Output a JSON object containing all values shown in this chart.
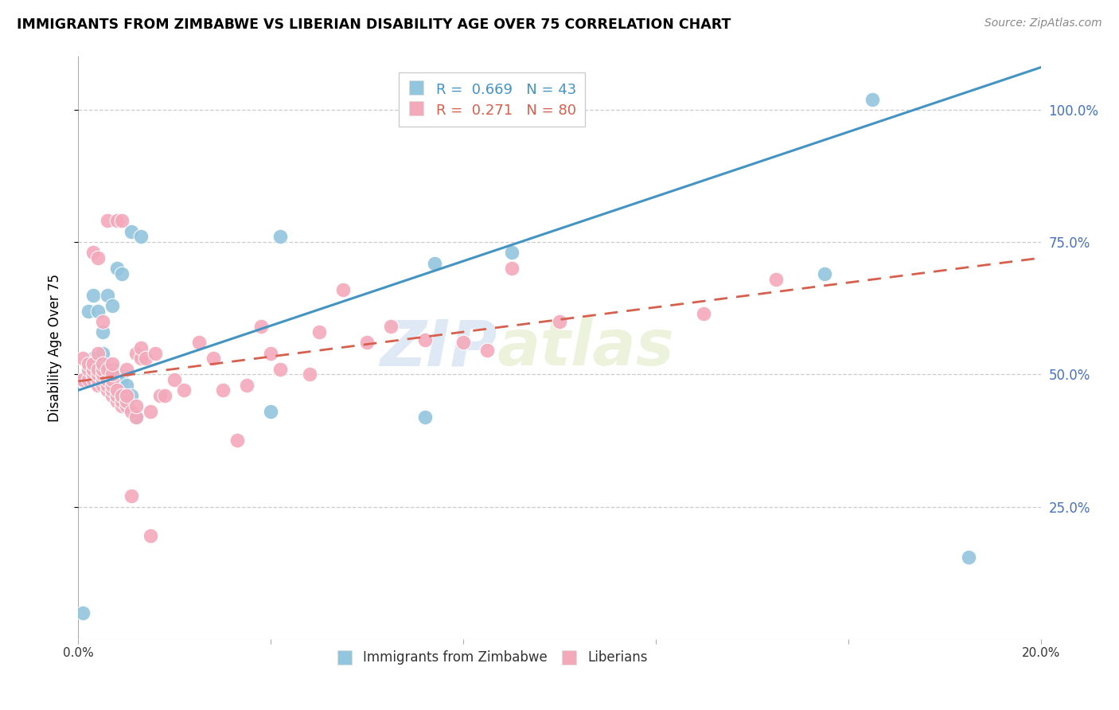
{
  "title": "IMMIGRANTS FROM ZIMBABWE VS LIBERIAN DISABILITY AGE OVER 75 CORRELATION CHART",
  "source": "Source: ZipAtlas.com",
  "ylabel": "Disability Age Over 75",
  "legend_blue_label": "Immigrants from Zimbabwe",
  "legend_pink_label": "Liberians",
  "legend_r_blue": "0.669",
  "legend_n_blue": "43",
  "legend_r_pink": "0.271",
  "legend_n_pink": "80",
  "blue_color": "#92c5de",
  "pink_color": "#f4a9bb",
  "blue_line_color": "#4393c3",
  "pink_line_color": "#d6604d",
  "watermark_zip": "ZIP",
  "watermark_atlas": "atlas",
  "xmin": 0.0,
  "xmax": 0.2,
  "ymin": 0.0,
  "ymax": 1.1,
  "ytick_positions": [
    0.25,
    0.5,
    0.75,
    1.0
  ],
  "ytick_labels": [
    "25.0%",
    "50.0%",
    "75.0%",
    "100.0%"
  ],
  "blue_line_x0": 0.0,
  "blue_line_y0": 0.47,
  "blue_line_x1": 0.2,
  "blue_line_y1": 1.08,
  "pink_line_x0": 0.0,
  "pink_line_y0": 0.487,
  "pink_line_x1": 0.2,
  "pink_line_y1": 0.72,
  "blue_scatter_x": [
    0.001,
    0.001,
    0.002,
    0.002,
    0.003,
    0.003,
    0.003,
    0.004,
    0.004,
    0.004,
    0.005,
    0.005,
    0.005,
    0.005,
    0.006,
    0.006,
    0.006,
    0.006,
    0.007,
    0.007,
    0.007,
    0.008,
    0.008,
    0.008,
    0.008,
    0.009,
    0.009,
    0.009,
    0.01,
    0.01,
    0.01,
    0.011,
    0.011,
    0.012,
    0.013,
    0.04,
    0.042,
    0.072,
    0.074,
    0.09,
    0.155,
    0.165,
    0.185
  ],
  "blue_scatter_y": [
    0.05,
    0.49,
    0.5,
    0.62,
    0.51,
    0.53,
    0.65,
    0.49,
    0.51,
    0.62,
    0.49,
    0.51,
    0.54,
    0.58,
    0.48,
    0.5,
    0.51,
    0.65,
    0.48,
    0.51,
    0.63,
    0.46,
    0.48,
    0.5,
    0.7,
    0.47,
    0.49,
    0.69,
    0.44,
    0.46,
    0.48,
    0.46,
    0.77,
    0.42,
    0.76,
    0.43,
    0.76,
    0.42,
    0.71,
    0.73,
    0.69,
    1.02,
    0.155
  ],
  "pink_scatter_x": [
    0.001,
    0.001,
    0.002,
    0.002,
    0.002,
    0.003,
    0.003,
    0.003,
    0.003,
    0.003,
    0.004,
    0.004,
    0.004,
    0.004,
    0.004,
    0.004,
    0.005,
    0.005,
    0.005,
    0.005,
    0.005,
    0.005,
    0.006,
    0.006,
    0.006,
    0.006,
    0.006,
    0.007,
    0.007,
    0.007,
    0.007,
    0.007,
    0.007,
    0.008,
    0.008,
    0.008,
    0.008,
    0.009,
    0.009,
    0.009,
    0.009,
    0.01,
    0.01,
    0.01,
    0.01,
    0.011,
    0.011,
    0.012,
    0.012,
    0.012,
    0.013,
    0.013,
    0.014,
    0.015,
    0.015,
    0.016,
    0.017,
    0.018,
    0.02,
    0.022,
    0.025,
    0.028,
    0.03,
    0.033,
    0.035,
    0.038,
    0.04,
    0.042,
    0.048,
    0.05,
    0.055,
    0.06,
    0.065,
    0.072,
    0.08,
    0.085,
    0.09,
    0.1,
    0.13,
    0.145
  ],
  "pink_scatter_y": [
    0.49,
    0.53,
    0.49,
    0.51,
    0.52,
    0.49,
    0.5,
    0.51,
    0.52,
    0.73,
    0.48,
    0.49,
    0.5,
    0.51,
    0.54,
    0.72,
    0.48,
    0.49,
    0.5,
    0.51,
    0.52,
    0.6,
    0.47,
    0.48,
    0.49,
    0.51,
    0.79,
    0.46,
    0.47,
    0.48,
    0.49,
    0.5,
    0.52,
    0.45,
    0.46,
    0.47,
    0.79,
    0.44,
    0.45,
    0.46,
    0.79,
    0.44,
    0.45,
    0.46,
    0.51,
    0.27,
    0.43,
    0.42,
    0.44,
    0.54,
    0.53,
    0.55,
    0.53,
    0.195,
    0.43,
    0.54,
    0.46,
    0.46,
    0.49,
    0.47,
    0.56,
    0.53,
    0.47,
    0.375,
    0.48,
    0.59,
    0.54,
    0.51,
    0.5,
    0.58,
    0.66,
    0.56,
    0.59,
    0.565,
    0.56,
    0.545,
    0.7,
    0.6,
    0.615,
    0.68
  ]
}
